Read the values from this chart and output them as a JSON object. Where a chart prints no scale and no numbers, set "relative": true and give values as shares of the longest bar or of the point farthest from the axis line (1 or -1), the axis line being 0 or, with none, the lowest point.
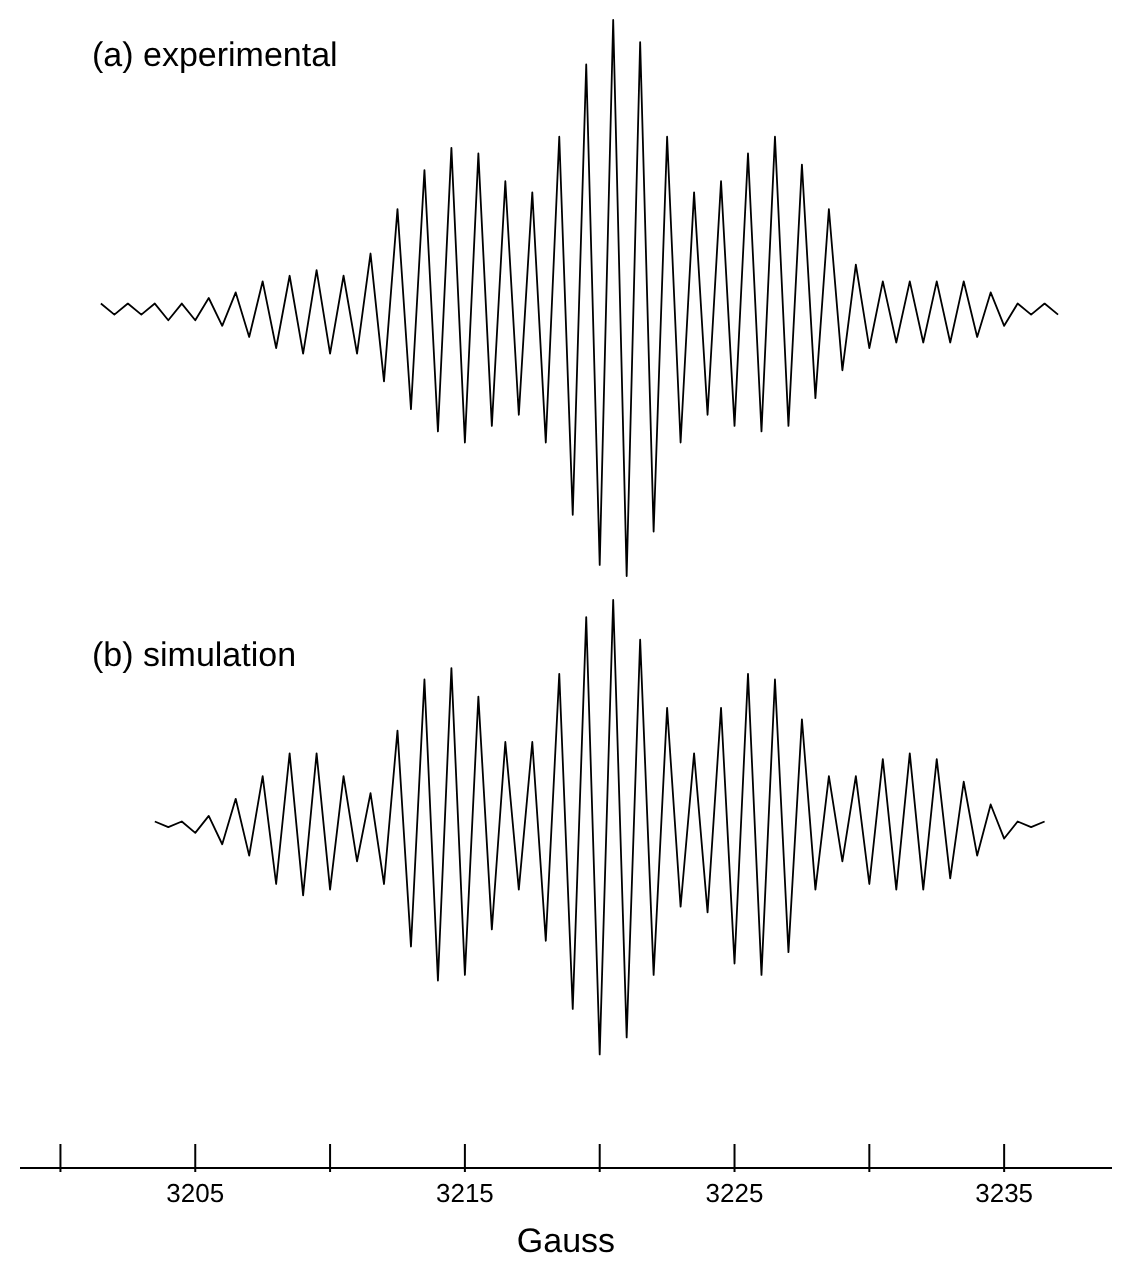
{
  "chart_data": [
    {
      "type": "line",
      "title": "(a) experimental",
      "relative": true,
      "tick_labels": false,
      "xlim": [
        3198.5,
        3239
      ],
      "x": [
        3201.5,
        3202,
        3202.5,
        3203,
        3203.5,
        3204,
        3204.5,
        3205,
        3205.5,
        3206,
        3206.5,
        3207,
        3207.5,
        3208,
        3208.5,
        3209,
        3209.5,
        3210,
        3210.5,
        3211,
        3211.5,
        3212,
        3212.5,
        3213,
        3213.5,
        3214,
        3214.5,
        3215,
        3215.5,
        3216,
        3216.5,
        3217,
        3217.5,
        3218,
        3218.5,
        3219,
        3219.5,
        3220,
        3220.5,
        3221,
        3221.5,
        3222,
        3222.5,
        3223,
        3223.5,
        3224,
        3224.5,
        3225,
        3225.5,
        3226,
        3226.5,
        3227,
        3227.5,
        3228,
        3228.5,
        3229,
        3229.5,
        3230,
        3230.5,
        3231,
        3231.5,
        3232,
        3232.5,
        3233,
        3233.5,
        3234,
        3234.5,
        3235,
        3235.5,
        3236,
        3236.5,
        3237
      ],
      "series": [
        {
          "color": "#000000",
          "values": [
            0.49,
            0.47,
            0.49,
            0.47,
            0.49,
            0.46,
            0.49,
            0.46,
            0.5,
            0.45,
            0.51,
            0.43,
            0.53,
            0.41,
            0.54,
            0.4,
            0.55,
            0.4,
            0.54,
            0.4,
            0.58,
            0.35,
            0.66,
            0.3,
            0.73,
            0.26,
            0.77,
            0.24,
            0.76,
            0.27,
            0.71,
            0.29,
            0.69,
            0.24,
            0.79,
            0.11,
            0.92,
            0.02,
            1,
            0,
            0.96,
            0.08,
            0.79,
            0.24,
            0.69,
            0.29,
            0.71,
            0.27,
            0.76,
            0.26,
            0.79,
            0.27,
            0.74,
            0.32,
            0.66,
            0.37,
            0.56,
            0.41,
            0.53,
            0.42,
            0.53,
            0.42,
            0.53,
            0.42,
            0.53,
            0.43,
            0.51,
            0.45,
            0.49,
            0.47,
            0.49,
            0.47
          ]
        }
      ]
    },
    {
      "type": "line",
      "title": "(b) simulation",
      "xlabel": "Gauss",
      "relative": true,
      "tick_labels": "x",
      "xlim": [
        3198.5,
        3239
      ],
      "xticks": [
        {
          "value": 3200,
          "label": null
        },
        3205,
        {
          "value": 3210,
          "label": null
        },
        3215,
        {
          "value": 3220,
          "label": null
        },
        3225,
        {
          "value": 3230,
          "label": null
        },
        3235
      ],
      "x": [
        3203.5,
        3204,
        3204.5,
        3205,
        3205.5,
        3206,
        3206.5,
        3207,
        3207.5,
        3208,
        3208.5,
        3209,
        3209.5,
        3210,
        3210.5,
        3211,
        3211.5,
        3212,
        3212.5,
        3213,
        3213.5,
        3214,
        3214.5,
        3215,
        3215.5,
        3216,
        3216.5,
        3217,
        3217.5,
        3218,
        3218.5,
        3219,
        3219.5,
        3220,
        3220.5,
        3221,
        3221.5,
        3222,
        3222.5,
        3223,
        3223.5,
        3224,
        3224.5,
        3225,
        3225.5,
        3226,
        3226.5,
        3227,
        3227.5,
        3228,
        3228.5,
        3229,
        3229.5,
        3230,
        3230.5,
        3231,
        3231.5,
        3232,
        3232.5,
        3233,
        3233.5,
        3234,
        3234.5,
        3235,
        3235.5,
        3236,
        3236.5
      ],
      "series": [
        {
          "color": "#000000",
          "values": [
            0.61,
            0.6,
            0.61,
            0.59,
            0.62,
            0.57,
            0.65,
            0.55,
            0.69,
            0.5,
            0.73,
            0.48,
            0.73,
            0.49,
            0.69,
            0.54,
            0.66,
            0.5,
            0.77,
            0.39,
            0.86,
            0.33,
            0.88,
            0.34,
            0.83,
            0.42,
            0.75,
            0.49,
            0.75,
            0.4,
            0.87,
            0.28,
            0.97,
            0.2,
            1,
            0.23,
            0.93,
            0.34,
            0.81,
            0.46,
            0.73,
            0.45,
            0.81,
            0.36,
            0.87,
            0.34,
            0.86,
            0.38,
            0.79,
            0.49,
            0.69,
            0.54,
            0.69,
            0.5,
            0.72,
            0.49,
            0.73,
            0.49,
            0.72,
            0.51,
            0.68,
            0.55,
            0.64,
            0.58,
            0.61,
            0.6,
            0.61
          ]
        }
      ]
    }
  ]
}
